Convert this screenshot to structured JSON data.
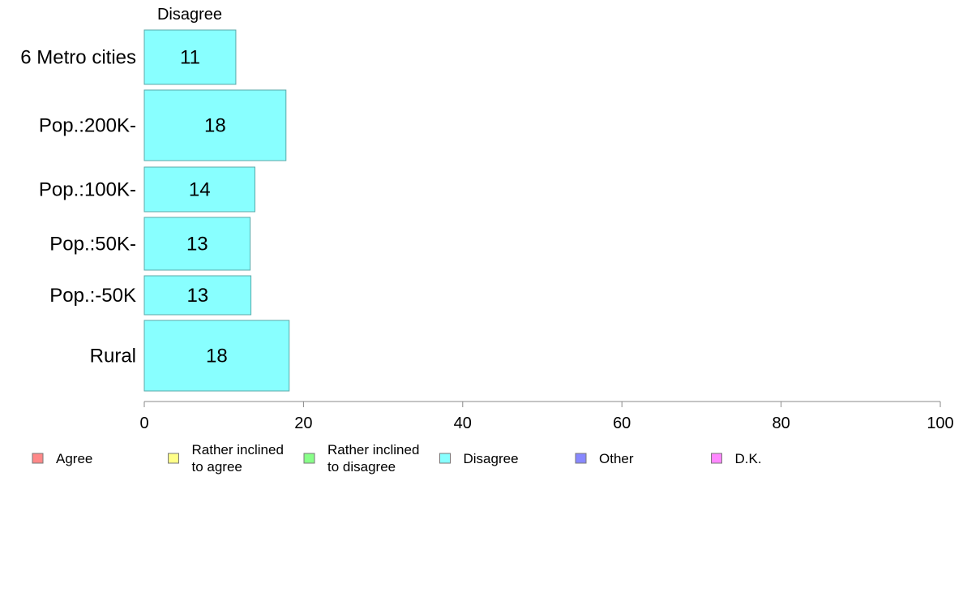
{
  "chart_data": {
    "type": "bar",
    "orientation": "horizontal",
    "stacked": true,
    "column_header": "Disagree",
    "categories": [
      "6 Metro cities",
      "Pop.:200K-",
      "Pop.:100K-",
      "Pop.:50K-",
      "Pop.:-50K",
      "Rural"
    ],
    "series": [
      {
        "name": "Disagree",
        "values": [
          11,
          18,
          14,
          13,
          13,
          18
        ],
        "bar_values": [
          11.5,
          17.8,
          13.9,
          13.3,
          13.4,
          18.2
        ],
        "color": "#88ffff"
      }
    ],
    "xlim": [
      0,
      100
    ],
    "xticks": [
      0,
      20,
      40,
      60,
      80,
      100
    ],
    "grid": false,
    "legend": {
      "placement": "bottom",
      "entries": [
        {
          "lines": [
            "Agree"
          ],
          "color": "#ff8888"
        },
        {
          "lines": [
            "Rather inclined",
            "to agree"
          ],
          "color": "#ffff88"
        },
        {
          "lines": [
            "Rather inclined",
            "to disagree"
          ],
          "color": "#88ff88"
        },
        {
          "lines": [
            "Disagree"
          ],
          "color": "#88ffff"
        },
        {
          "lines": [
            "Other"
          ],
          "color": "#8888ff"
        },
        {
          "lines": [
            "D.K."
          ],
          "color": "#ff88ff"
        }
      ]
    }
  }
}
